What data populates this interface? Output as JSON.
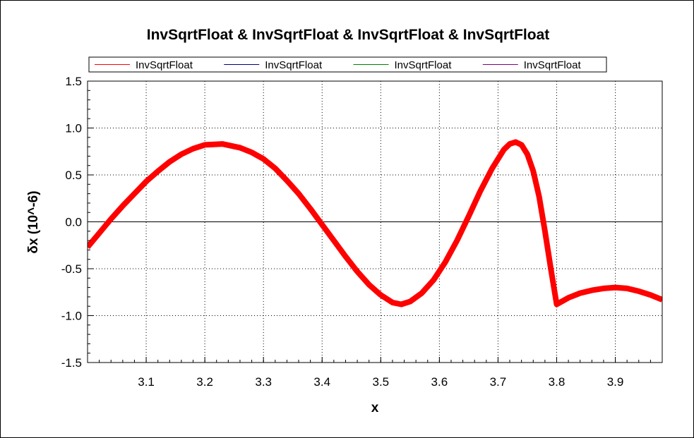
{
  "chart_data": {
    "type": "line",
    "title": "InvSqrtFloat & InvSqrtFloat & InvSqrtFloat & InvSqrtFloat",
    "xlabel": "x",
    "ylabel": "δx (10^-6)",
    "xlim": [
      3.0,
      3.98
    ],
    "ylim": [
      -1.5,
      1.5
    ],
    "xticks": [
      "3.1",
      "3.2",
      "3.3",
      "3.4",
      "3.5",
      "3.6",
      "3.7",
      "3.8",
      "3.9"
    ],
    "yticks": [
      "1.5",
      "1.0",
      "0.5",
      "0.0",
      "-0.5",
      "-1.0",
      "-1.5"
    ],
    "grid": true,
    "legend_position": "top",
    "series": [
      {
        "name": "InvSqrtFloat",
        "color": "#ff0000",
        "band_width": 0.06,
        "x": [
          3.0,
          3.02,
          3.04,
          3.06,
          3.08,
          3.1,
          3.12,
          3.14,
          3.16,
          3.18,
          3.2,
          3.23,
          3.26,
          3.28,
          3.3,
          3.32,
          3.34,
          3.36,
          3.38,
          3.4,
          3.42,
          3.44,
          3.46,
          3.48,
          3.5,
          3.52,
          3.535,
          3.55,
          3.57,
          3.59,
          3.61,
          3.63,
          3.65,
          3.67,
          3.69,
          3.71,
          3.72,
          3.73,
          3.74,
          3.75,
          3.76,
          3.77,
          3.78,
          3.79,
          3.8,
          3.82,
          3.84,
          3.86,
          3.88,
          3.9,
          3.92,
          3.94,
          3.96,
          3.98
        ],
        "y": [
          -0.27,
          -0.12,
          0.03,
          0.17,
          0.3,
          0.43,
          0.54,
          0.64,
          0.72,
          0.78,
          0.82,
          0.83,
          0.79,
          0.74,
          0.67,
          0.57,
          0.44,
          0.3,
          0.14,
          -0.03,
          -0.2,
          -0.37,
          -0.53,
          -0.67,
          -0.78,
          -0.86,
          -0.88,
          -0.85,
          -0.76,
          -0.62,
          -0.43,
          -0.2,
          0.06,
          0.33,
          0.57,
          0.77,
          0.83,
          0.85,
          0.82,
          0.72,
          0.54,
          0.27,
          -0.1,
          -0.5,
          -0.88,
          -0.81,
          -0.76,
          -0.73,
          -0.71,
          -0.7,
          -0.71,
          -0.74,
          -0.78,
          -0.83
        ]
      },
      {
        "name": "InvSqrtFloat",
        "color": "#000080"
      },
      {
        "name": "InvSqrtFloat",
        "color": "#008000"
      },
      {
        "name": "InvSqrtFloat",
        "color": "#800080"
      }
    ]
  }
}
